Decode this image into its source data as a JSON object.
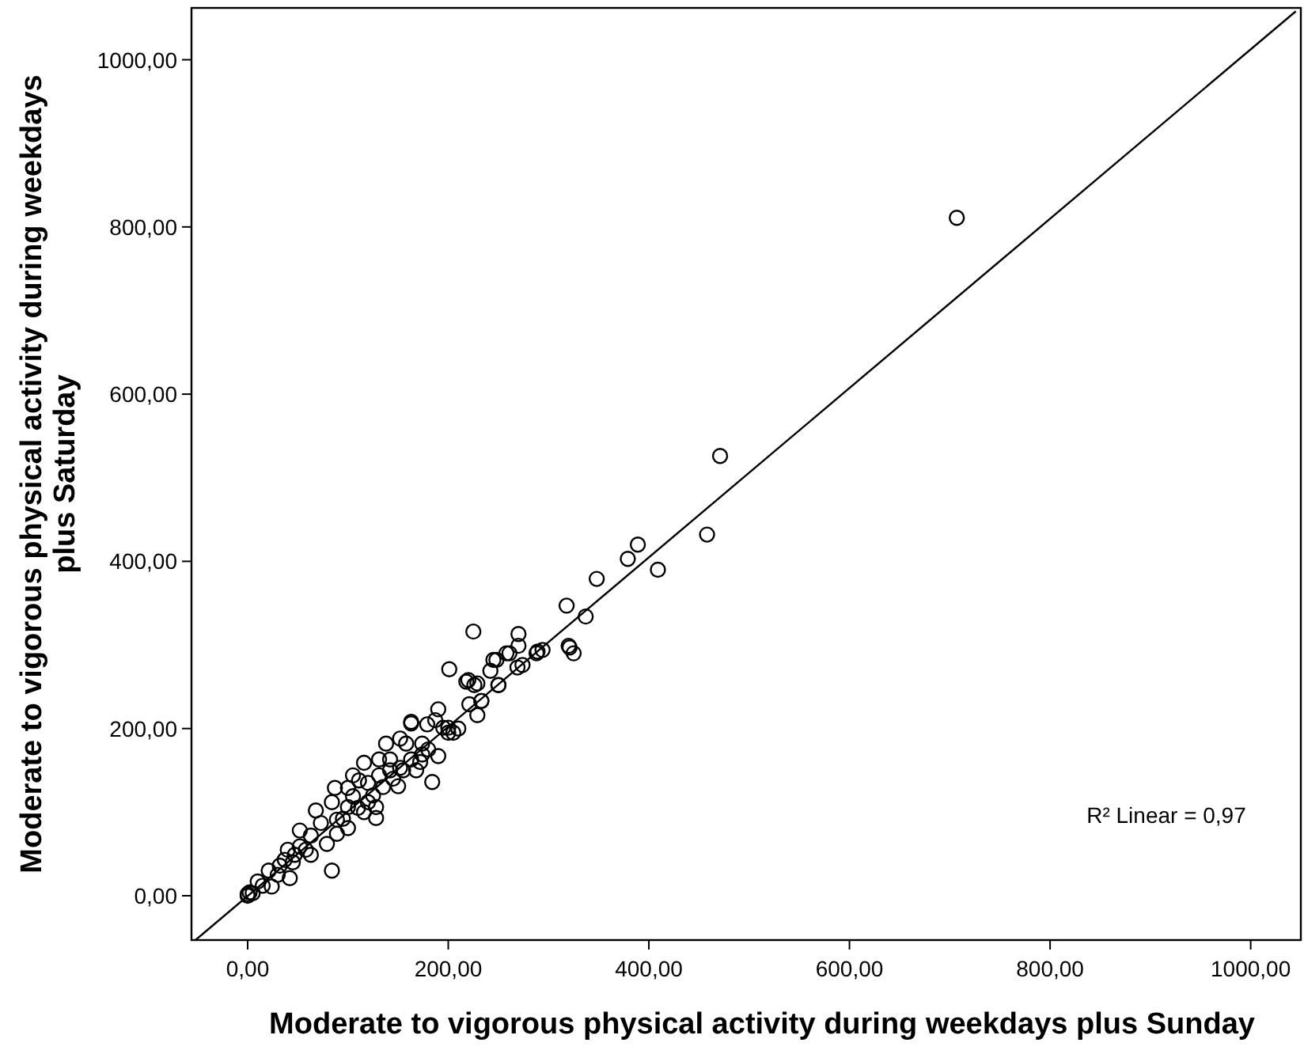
{
  "chart_data": {
    "type": "scatter",
    "xlabel": "Moderate to vigorous physical activity during weekdays plus Sunday",
    "ylabel": "Moderate to vigorous physical activity during weekdays plus Saturday",
    "xlim": [
      -56,
      1050
    ],
    "ylim": [
      -53,
      1062
    ],
    "xticks": [
      {
        "value": 0,
        "label": "0,00"
      },
      {
        "value": 200,
        "label": "200,00"
      },
      {
        "value": 400,
        "label": "400,00"
      },
      {
        "value": 600,
        "label": "600,00"
      },
      {
        "value": 800,
        "label": "800,00"
      },
      {
        "value": 1000,
        "label": "1000,00"
      }
    ],
    "yticks": [
      {
        "value": 0,
        "label": "0,00"
      },
      {
        "value": 200,
        "label": "200,00"
      },
      {
        "value": 400,
        "label": "400,00"
      },
      {
        "value": 600,
        "label": "600,00"
      },
      {
        "value": 800,
        "label": "800,00"
      },
      {
        "value": 1000,
        "label": "1000,00"
      }
    ],
    "grid": false,
    "marker": "circle",
    "annotations": [
      "R² Linear = 0,97"
    ],
    "series": [
      {
        "color": "#000000",
        "x": [
          707,
          471,
          458,
          409,
          389,
          379,
          348,
          337,
          318,
          321,
          325,
          225,
          270,
          270,
          320,
          294,
          288,
          201,
          248,
          242,
          261,
          269,
          274,
          250,
          218,
          226,
          221,
          233,
          229,
          190,
          163,
          200,
          289,
          245,
          258,
          220,
          229,
          250,
          233,
          163,
          179,
          195,
          200,
          138,
          158,
          116,
          131,
          174,
          190,
          152,
          184,
          87,
          100,
          111,
          120,
          131,
          150,
          68,
          84,
          100,
          116,
          128,
          100,
          52,
          63,
          79,
          40,
          47,
          63,
          84,
          32,
          42,
          21,
          10,
          24,
          2,
          0,
          0,
          37,
          52,
          73,
          89,
          89,
          105,
          120,
          128,
          142,
          174,
          187,
          168,
          152,
          142,
          105,
          163,
          5,
          15,
          30,
          45,
          58,
          95,
          110,
          125,
          135,
          145,
          155,
          172,
          180,
          205,
          210
        ],
        "values": [
          811,
          526,
          432,
          390,
          420,
          403,
          379,
          334,
          347,
          297,
          290,
          316,
          313,
          299,
          299,
          294,
          290,
          271,
          282,
          269,
          290,
          273,
          276,
          252,
          256,
          252,
          229,
          233,
          216,
          223,
          208,
          201,
          292,
          282,
          290,
          258,
          254,
          252,
          233,
          206,
          205,
          201,
          195,
          182,
          182,
          159,
          163,
          169,
          167,
          153,
          136,
          129,
          129,
          138,
          135,
          144,
          131,
          102,
          112,
          106,
          100,
          93,
          81,
          78,
          72,
          62,
          55,
          49,
          49,
          30,
          36,
          21,
          30,
          17,
          11,
          4,
          0,
          2,
          43,
          59,
          87,
          91,
          74,
          119,
          112,
          106,
          163,
          182,
          210,
          150,
          188,
          150,
          144,
          163,
          3,
          12,
          25,
          40,
          55,
          92,
          105,
          120,
          130,
          140,
          150,
          160,
          175,
          195,
          200
        ]
      },
      {
        "type": "line",
        "color": "#000000",
        "marker": "none",
        "x": [
          -52,
          1045
        ],
        "values": [
          -53,
          1058
        ]
      }
    ]
  }
}
